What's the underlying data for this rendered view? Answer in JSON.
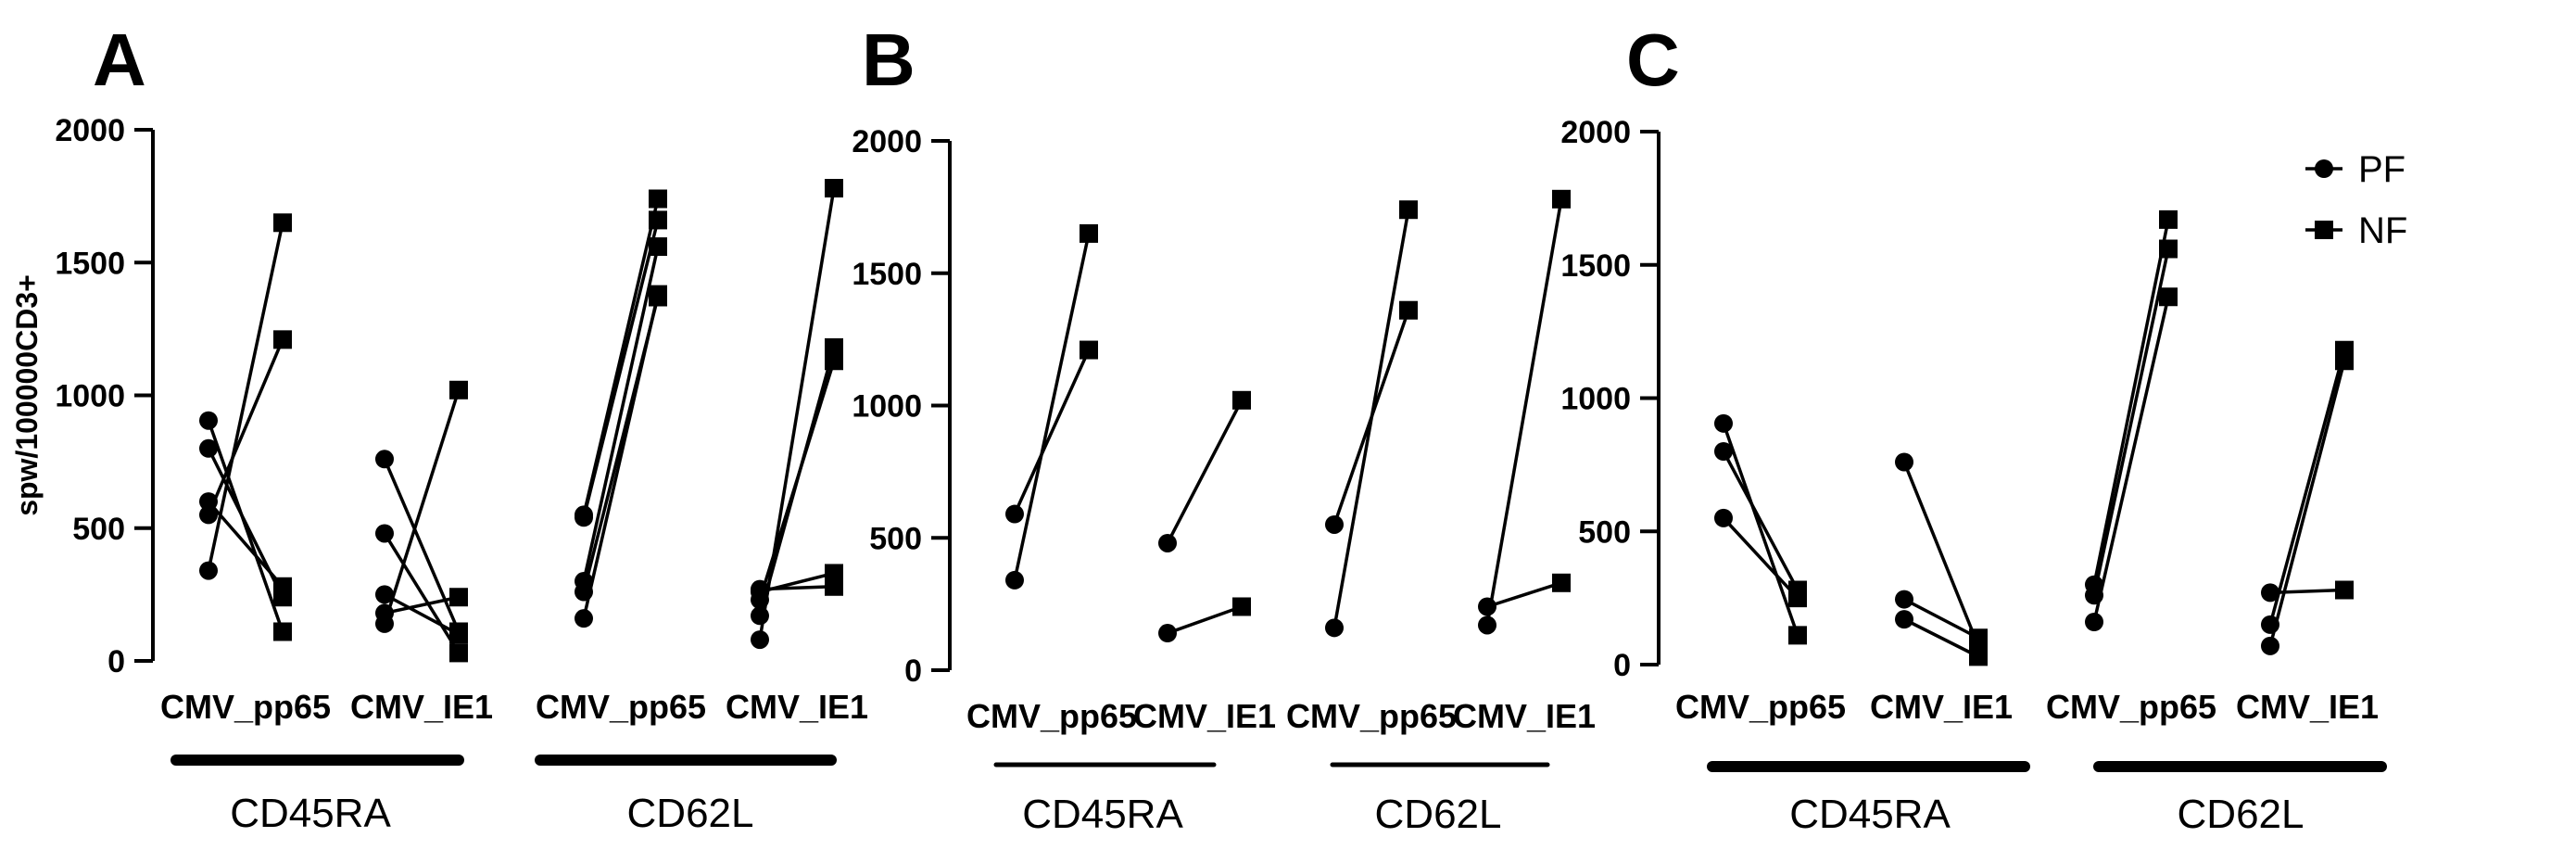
{
  "chart_data": [
    {
      "panel": "A",
      "type": "scatter",
      "ylabel": "spw/100000CD3+",
      "ylim": [
        0,
        2000
      ],
      "yticks": [
        0,
        500,
        1000,
        1500,
        2000
      ],
      "categories": [
        "CMV_pp65",
        "CMV_IE1",
        "CMV_pp65",
        "CMV_IE1"
      ],
      "groups": [
        {
          "label": "CD45RA",
          "categories": [
            0,
            1
          ]
        },
        {
          "label": "CD62L",
          "categories": [
            2,
            3
          ]
        }
      ],
      "series": [
        "PF",
        "NF"
      ],
      "pairs": [
        {
          "category": 0,
          "points": [
            [
              340,
              1650
            ],
            [
              550,
              1210
            ],
            [
              600,
              280
            ],
            [
              800,
              240
            ],
            [
              905,
              110
            ]
          ]
        },
        {
          "category": 1,
          "points": [
            [
              140,
              1020
            ],
            [
              180,
              240
            ],
            [
              250,
              100
            ],
            [
              480,
              30
            ],
            [
              760,
              110
            ]
          ]
        },
        {
          "category": 2,
          "points": [
            [
              160,
              1380
            ],
            [
              260,
              1370
            ],
            [
              300,
              1560
            ],
            [
              540,
              1660
            ],
            [
              550,
              1740
            ]
          ]
        },
        {
          "category": 3,
          "points": [
            [
              80,
              1780
            ],
            [
              170,
              1180
            ],
            [
              230,
              1130
            ],
            [
              260,
              330
            ],
            [
              270,
              280
            ]
          ]
        }
      ]
    },
    {
      "panel": "B",
      "type": "scatter",
      "ylabel": "",
      "ylim": [
        0,
        2000
      ],
      "yticks": [
        0,
        500,
        1000,
        1500,
        2000
      ],
      "categories": [
        "CMV_pp65",
        "CMV_IE1",
        "CMV_pp65",
        "CMV_IE1"
      ],
      "groups": [
        {
          "label": "CD45RA",
          "categories": [
            0,
            1
          ]
        },
        {
          "label": "CD62L",
          "categories": [
            2,
            3
          ]
        }
      ],
      "series": [
        "PF",
        "NF"
      ],
      "pairs": [
        {
          "category": 0,
          "points": [
            [
              340,
              1650
            ],
            [
              590,
              1210
            ]
          ]
        },
        {
          "category": 1,
          "points": [
            [
              140,
              240
            ],
            [
              480,
              1020
            ]
          ]
        },
        {
          "category": 2,
          "points": [
            [
              160,
              1740
            ],
            [
              550,
              1360
            ]
          ]
        },
        {
          "category": 3,
          "points": [
            [
              170,
              1780
            ],
            [
              240,
              330
            ]
          ]
        }
      ]
    },
    {
      "panel": "C",
      "type": "scatter",
      "ylabel": "",
      "ylim": [
        0,
        2000
      ],
      "yticks": [
        0,
        500,
        1000,
        1500,
        2000
      ],
      "categories": [
        "CMV_pp65",
        "CMV_IE1",
        "CMV_pp65",
        "CMV_IE1"
      ],
      "groups": [
        {
          "label": "CD45RA",
          "categories": [
            0,
            1
          ]
        },
        {
          "label": "CD62L",
          "categories": [
            2,
            3
          ]
        }
      ],
      "series": [
        "PF",
        "NF"
      ],
      "pairs": [
        {
          "category": 0,
          "points": [
            [
              550,
              250
            ],
            [
              800,
              280
            ],
            [
              905,
              110
            ]
          ]
        },
        {
          "category": 1,
          "points": [
            [
              170,
              30
            ],
            [
              245,
              100
            ],
            [
              760,
              70
            ]
          ]
        },
        {
          "category": 2,
          "points": [
            [
              160,
              1380
            ],
            [
              260,
              1560
            ],
            [
              300,
              1670
            ]
          ]
        },
        {
          "category": 3,
          "points": [
            [
              70,
              1140
            ],
            [
              150,
              1180
            ],
            [
              270,
              280
            ]
          ]
        }
      ]
    }
  ],
  "legend": [
    {
      "label": "PF",
      "marker": "circle"
    },
    {
      "label": "NF",
      "marker": "square"
    }
  ],
  "colors": {
    "ink": "#000000",
    "background": "#ffffff"
  }
}
